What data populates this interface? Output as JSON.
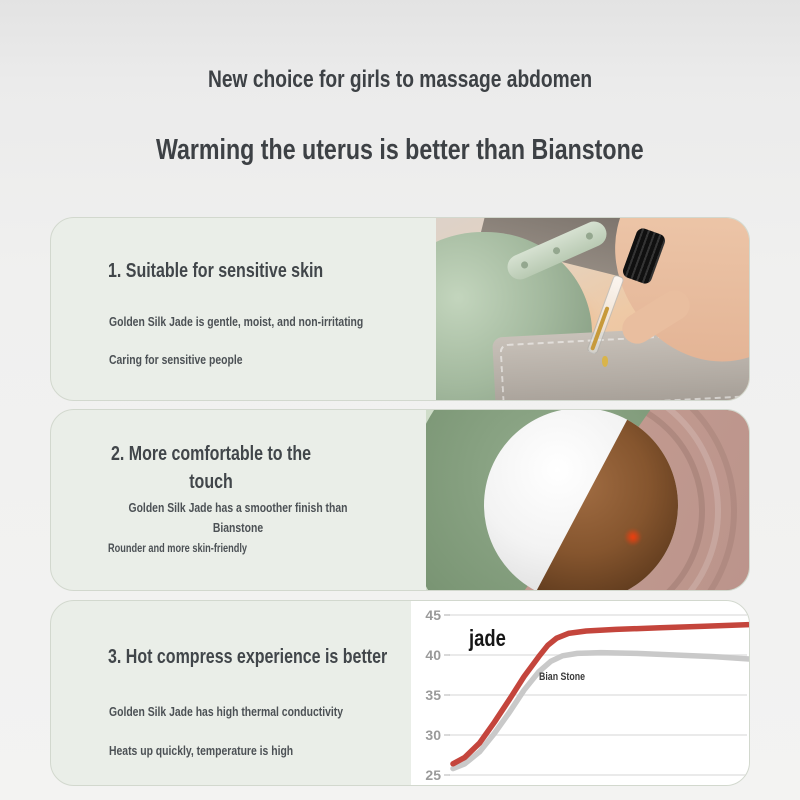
{
  "header": {
    "title": "New choice for girls to massage abdomen",
    "subtitle": "Warming the uterus is better than Bianstone"
  },
  "cards": [
    {
      "heading": "1. Suitable for sensitive skin",
      "line1": "Golden Silk Jade is gentle, moist, and non-irritating",
      "line2": "Caring for sensitive people"
    },
    {
      "heading": "2. More comfortable to the touch",
      "line1": "Golden Silk Jade has a smoother finish than Bianstone",
      "line2": "Rounder and more skin-friendly"
    },
    {
      "heading": "3. Hot compress experience is better",
      "line1": "Golden Silk Jade has high thermal conductivity",
      "line2": "Heats up quickly, temperature is high"
    }
  ],
  "chart_data": {
    "type": "line",
    "title": "",
    "xlabel": "",
    "ylabel": "",
    "ylim": [
      25,
      45
    ],
    "yticks": [
      45,
      40,
      35,
      30,
      25
    ],
    "x_axis_labels": [],
    "grid": true,
    "legend_position": "inline-labels",
    "series": [
      {
        "name": "jade",
        "color": "#c4453c",
        "points": [
          [
            0,
            26.4
          ],
          [
            0.04,
            27.2
          ],
          [
            0.09,
            29.0
          ],
          [
            0.14,
            31.6
          ],
          [
            0.19,
            34.4
          ],
          [
            0.24,
            37.3
          ],
          [
            0.29,
            39.8
          ],
          [
            0.32,
            41.2
          ],
          [
            0.35,
            42.1
          ],
          [
            0.39,
            42.7
          ],
          [
            0.45,
            43.0
          ],
          [
            0.55,
            43.2
          ],
          [
            0.7,
            43.4
          ],
          [
            0.85,
            43.6
          ],
          [
            1,
            43.8
          ]
        ]
      },
      {
        "name": "Bian Stone",
        "color": "#c9c9c9",
        "points": [
          [
            0,
            25.8
          ],
          [
            0.04,
            26.4
          ],
          [
            0.09,
            27.9
          ],
          [
            0.14,
            30.2
          ],
          [
            0.19,
            32.8
          ],
          [
            0.24,
            35.6
          ],
          [
            0.29,
            37.9
          ],
          [
            0.33,
            39.2
          ],
          [
            0.37,
            39.9
          ],
          [
            0.42,
            40.2
          ],
          [
            0.5,
            40.3
          ],
          [
            0.62,
            40.2
          ],
          [
            0.75,
            40.0
          ],
          [
            0.88,
            39.8
          ],
          [
            1,
            39.5
          ]
        ]
      }
    ]
  },
  "colors": {
    "accent_red": "#c4453c",
    "line_gray": "#c9c9c9",
    "card_bg": "#eaeee8",
    "device_green": "#9db398",
    "bianstone_pink": "#c29a90",
    "jade_white": "#f3f3f3",
    "bianstone_brown": "#85552e",
    "heading_text": "#41464a"
  }
}
